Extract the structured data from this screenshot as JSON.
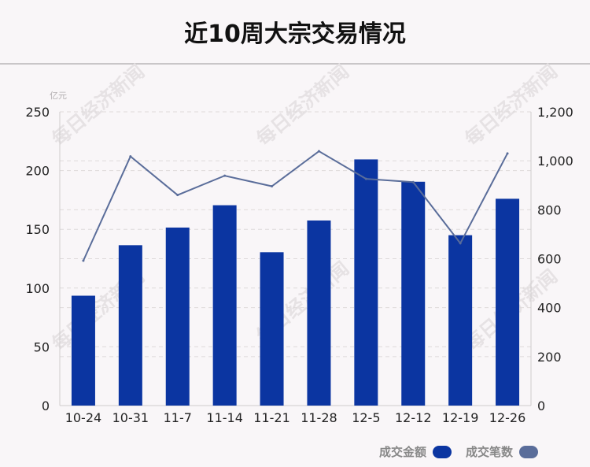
{
  "title": "近10周大宗交易情况",
  "unit_label": "亿元",
  "watermark_text": "每日经济新闻",
  "colors": {
    "bar": "#0b35a1",
    "line": "#5a6d9a",
    "grid": "#dedada",
    "axis": "#cfcccd",
    "watermark": "#e6e2e4"
  },
  "chart_data": {
    "type": "bar+line",
    "categories": [
      "10-24",
      "10-31",
      "11-7",
      "11-14",
      "11-21",
      "11-28",
      "12-5",
      "12-12",
      "12-19",
      "12-26"
    ],
    "series": [
      {
        "name": "成交金额",
        "type": "bar",
        "axis": "left",
        "values": [
          93.5,
          136.5,
          151.5,
          170.5,
          130.5,
          157.5,
          209.5,
          190.5,
          145,
          176
        ]
      },
      {
        "name": "成交笔数",
        "type": "line",
        "axis": "right",
        "values": [
          592,
          1018,
          860,
          939,
          896,
          1039,
          926,
          913,
          663,
          1030
        ]
      }
    ],
    "left_axis": {
      "ylim": [
        0,
        250
      ],
      "ticks": [
        "0",
        "50",
        "100",
        "150",
        "200",
        "250"
      ]
    },
    "right_axis": {
      "ylim": [
        0,
        1200
      ],
      "ticks": [
        "0",
        "200",
        "400",
        "600",
        "800",
        "1,000",
        "1,200"
      ]
    },
    "legend": [
      "成交金额",
      "成交笔数"
    ],
    "legend_position": "bottom-right",
    "grid": true
  }
}
